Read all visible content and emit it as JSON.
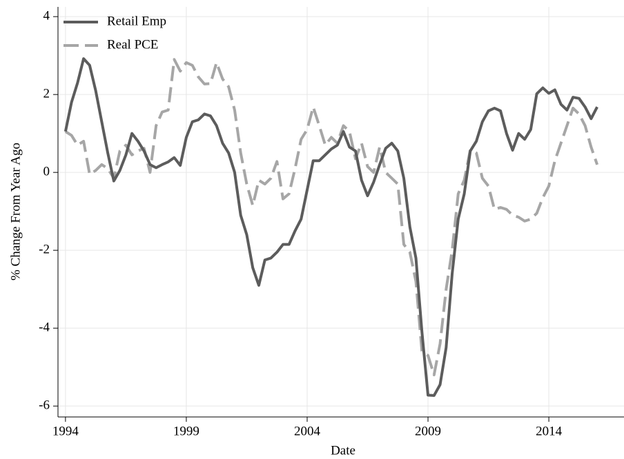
{
  "chart_data": {
    "type": "line",
    "x_label": "Date",
    "y_label": "% Change From Year Ago",
    "x": [
      1994,
      1994.25,
      1994.5,
      1994.75,
      1995,
      1995.25,
      1995.5,
      1995.75,
      1996,
      1996.25,
      1996.5,
      1996.75,
      1997,
      1997.25,
      1997.5,
      1997.75,
      1998,
      1998.25,
      1998.5,
      1998.75,
      1999,
      1999.25,
      1999.5,
      1999.75,
      2000,
      2000.25,
      2000.5,
      2000.75,
      2001,
      2001.25,
      2001.5,
      2001.75,
      2002,
      2002.25,
      2002.5,
      2002.75,
      2003,
      2003.25,
      2003.5,
      2003.75,
      2004,
      2004.25,
      2004.5,
      2004.75,
      2005,
      2005.25,
      2005.5,
      2005.75,
      2006,
      2006.25,
      2006.5,
      2006.75,
      2007,
      2007.25,
      2007.5,
      2007.75,
      2008,
      2008.25,
      2008.5,
      2008.75,
      2009,
      2009.25,
      2009.5,
      2009.75,
      2010,
      2010.25,
      2010.5,
      2010.75,
      2011,
      2011.25,
      2011.5,
      2011.75,
      2012,
      2012.25,
      2012.5,
      2012.75,
      2013,
      2013.25,
      2013.5,
      2013.75,
      2014,
      2014.25,
      2014.5,
      2014.75,
      2015,
      2015.25,
      2015.5,
      2015.75,
      2016
    ],
    "series": [
      {
        "name": "Retail Emp",
        "color": "#5c5c5c",
        "dash": false,
        "values": [
          1.05,
          1.8,
          2.3,
          2.92,
          2.75,
          2.1,
          1.3,
          0.5,
          -0.22,
          0.05,
          0.45,
          1.0,
          0.8,
          0.55,
          0.2,
          0.12,
          0.2,
          0.27,
          0.38,
          0.18,
          0.9,
          1.3,
          1.35,
          1.5,
          1.45,
          1.2,
          0.75,
          0.5,
          0.0,
          -1.1,
          -1.6,
          -2.45,
          -2.9,
          -2.25,
          -2.2,
          -2.05,
          -1.85,
          -1.85,
          -1.5,
          -1.2,
          -0.45,
          0.3,
          0.3,
          0.45,
          0.6,
          0.7,
          1.05,
          0.65,
          0.55,
          -0.2,
          -0.6,
          -0.25,
          0.2,
          0.62,
          0.75,
          0.55,
          -0.15,
          -1.4,
          -2.2,
          -4.1,
          -5.72,
          -5.73,
          -5.45,
          -4.5,
          -2.6,
          -1.2,
          -0.55,
          0.55,
          0.8,
          1.3,
          1.58,
          1.65,
          1.58,
          1.0,
          0.57,
          1.0,
          0.85,
          1.1,
          2.02,
          2.17,
          2.03,
          2.12,
          1.75,
          1.6,
          1.93,
          1.9,
          1.68,
          1.38,
          1.68
        ]
      },
      {
        "name": "Real PCE",
        "color": "#a6a6a6",
        "dash": true,
        "values": [
          1.05,
          0.95,
          0.7,
          0.8,
          -0.05,
          0.05,
          0.2,
          0.1,
          -0.15,
          0.55,
          0.7,
          0.45,
          0.55,
          0.62,
          0.0,
          1.2,
          1.55,
          1.6,
          2.9,
          2.6,
          2.82,
          2.75,
          2.45,
          2.27,
          2.28,
          2.82,
          2.4,
          2.2,
          1.6,
          0.5,
          -0.3,
          -0.85,
          -0.2,
          -0.3,
          -0.15,
          0.28,
          -0.68,
          -0.55,
          0.1,
          0.85,
          1.1,
          1.68,
          1.2,
          0.7,
          0.9,
          0.75,
          1.2,
          1.05,
          0.35,
          0.75,
          0.15,
          0.0,
          0.65,
          0.0,
          -0.15,
          -0.3,
          -1.85,
          -2.05,
          -2.8,
          -4.6,
          -4.7,
          -5.2,
          -4.4,
          -3.0,
          -2.0,
          -0.55,
          -0.2,
          0.58,
          0.5,
          -0.15,
          -0.35,
          -0.95,
          -0.9,
          -0.95,
          -1.1,
          -1.15,
          -1.25,
          -1.2,
          -1.05,
          -0.65,
          -0.35,
          0.3,
          0.75,
          1.2,
          1.65,
          1.5,
          1.2,
          0.65,
          0.2
        ]
      }
    ],
    "xlim": [
      1993.69,
      2017.11
    ],
    "xticks": [
      1994,
      1999,
      2004,
      2009,
      2014
    ],
    "ylim": [
      -6.28,
      4.25
    ],
    "yticks": [
      -6,
      -4,
      -2,
      0,
      2,
      4
    ],
    "grid": true,
    "legend": "top-left"
  }
}
